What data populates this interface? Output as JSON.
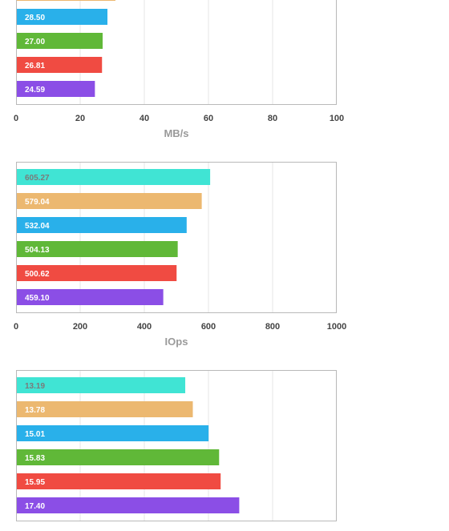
{
  "colors": {
    "series": [
      "#40e4d4",
      "#ecb870",
      "#29b0ea",
      "#60b838",
      "#f04b42",
      "#8b4ee6"
    ],
    "frame": "#b9b9b9",
    "grid": "#e6e6e6",
    "tick_label": "#444444",
    "axis_label": "#9a9a9a",
    "dark_label": "#7a7a7a",
    "light_label": "#ffffff"
  },
  "chart_data": [
    {
      "type": "bar",
      "orientation": "horizontal",
      "values": [
        null,
        null,
        28.5,
        27.0,
        26.81,
        24.59
      ],
      "labels": [
        "",
        "",
        "28.50",
        "27.00",
        "26.81",
        "24.59"
      ],
      "partially_visible_value": 31.0,
      "xlim": [
        0,
        100
      ],
      "ticks": [
        "0",
        "20",
        "40",
        "60",
        "80",
        "100"
      ],
      "xlabel": "MB/s",
      "grid": true
    },
    {
      "type": "bar",
      "orientation": "horizontal",
      "values": [
        605.27,
        579.04,
        532.04,
        504.13,
        500.62,
        459.1
      ],
      "labels": [
        "605.27",
        "579.04",
        "532.04",
        "504.13",
        "500.62",
        "459.10"
      ],
      "xlim": [
        0,
        1000
      ],
      "ticks": [
        "0",
        "200",
        "400",
        "600",
        "800",
        "1000"
      ],
      "xlabel": "IOps",
      "grid": true
    },
    {
      "type": "bar",
      "orientation": "horizontal",
      "values": [
        13.19,
        13.78,
        15.01,
        15.83,
        15.95,
        17.4
      ],
      "labels": [
        "13.19",
        "13.78",
        "15.01",
        "15.83",
        "15.95",
        "17.40"
      ],
      "xlim": [
        0,
        25
      ],
      "ticks": [],
      "xlabel": "",
      "grid": true
    }
  ]
}
